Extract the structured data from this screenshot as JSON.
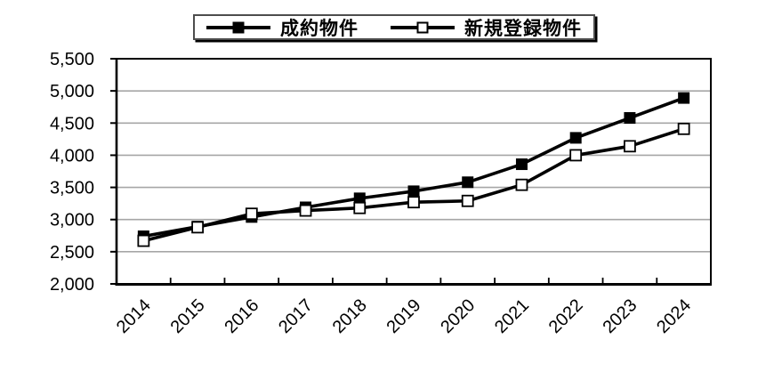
{
  "chart_data": {
    "type": "line",
    "title": "",
    "categories": [
      "2014",
      "2015",
      "2016",
      "2017",
      "2018",
      "2019",
      "2020",
      "2021",
      "2022",
      "2023",
      "2024"
    ],
    "series": [
      {
        "name": "成約物件",
        "marker": "filled-square",
        "color": "#000000",
        "values": [
          2740,
          2890,
          3040,
          3190,
          3330,
          3440,
          3580,
          3860,
          4270,
          4580,
          4890
        ]
      },
      {
        "name": "新規登録物件",
        "marker": "open-square",
        "color": "#000000",
        "values": [
          2670,
          2880,
          3090,
          3140,
          3180,
          3270,
          3290,
          3540,
          4000,
          4140,
          4410
        ]
      }
    ],
    "xlabel": "",
    "ylabel": "",
    "ylim": [
      2000,
      5500
    ],
    "ytick_step": 500,
    "ytick_labels": [
      "2,000",
      "2,500",
      "3,000",
      "3,500",
      "4,000",
      "4,500",
      "5,000",
      "5,500"
    ],
    "grid": "horizontal",
    "legend_position": "top-center"
  },
  "colors": {
    "series_line": "#000000",
    "gridline": "#a6a6a6",
    "axis": "#000000",
    "background": "#ffffff",
    "text": "#000000"
  }
}
